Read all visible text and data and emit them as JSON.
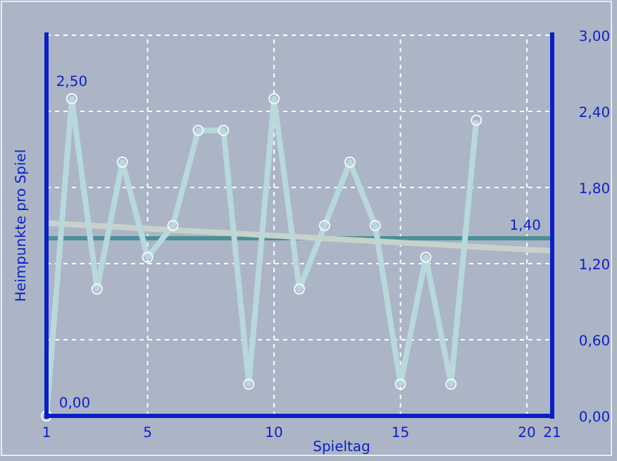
{
  "chart_data": {
    "type": "line",
    "xlabel": "Spieltag",
    "ylabel": "Heimpunkte pro Spiel",
    "x": [
      1,
      2,
      3,
      4,
      5,
      6,
      7,
      8,
      9,
      10,
      11,
      12,
      13,
      14,
      15,
      16,
      17,
      18
    ],
    "series": [
      {
        "color": "#b8d8dc",
        "values": [
          0,
          2.5,
          1,
          2,
          1.25,
          1.5,
          2.25,
          2.25,
          0.25,
          2.5,
          1,
          1.5,
          2,
          1.5,
          0.25,
          1.25,
          0.25,
          2.33
        ],
        "marker": "circle"
      },
      {
        "type": "line",
        "x": [
          1,
          21
        ],
        "values": [
          1.52,
          1.3
        ],
        "color": "#c8d2cc",
        "marker": "none"
      }
    ],
    "xlim": [
      1,
      21
    ],
    "xticks": [
      1,
      5,
      10,
      15,
      20,
      21
    ],
    "ylim": [
      0,
      3
    ],
    "yticks": [
      {
        "value": 0,
        "label": "0,00"
      },
      {
        "value": 0.6,
        "label": "0,60"
      },
      {
        "value": 1.2,
        "label": "1,20"
      },
      {
        "value": 1.8,
        "label": "1,80"
      },
      {
        "value": 2.4,
        "label": "2,40"
      },
      {
        "value": 3,
        "label": "3,00"
      }
    ],
    "ref_lines": [
      {
        "axis": "y",
        "value": 1.4,
        "label": "1,40",
        "color": "#4a9098"
      }
    ],
    "annotations": [
      {
        "text": "2,50",
        "x": 2,
        "y": 2.5
      },
      {
        "text": "0,00",
        "x": 1,
        "y": 0
      }
    ],
    "grid": true,
    "line_style": "solid"
  }
}
